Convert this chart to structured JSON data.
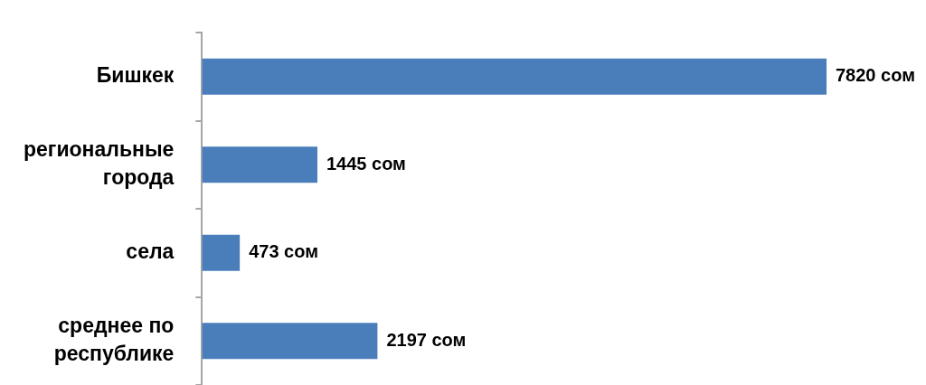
{
  "chart_data": {
    "type": "bar",
    "orientation": "horizontal",
    "categories": [
      "Бишкек",
      "региональные города",
      "села",
      "среднее по республике"
    ],
    "values": [
      7820,
      1445,
      473,
      2197
    ],
    "value_labels": [
      "7820 сом",
      "1445 сом",
      "473 сом",
      "2197 сом"
    ],
    "color": "#4a7ebb"
  }
}
